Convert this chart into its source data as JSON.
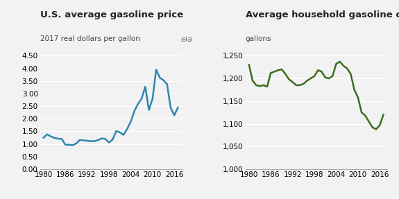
{
  "price_years": [
    1980,
    1981,
    1982,
    1983,
    1984,
    1985,
    1986,
    1987,
    1988,
    1989,
    1990,
    1991,
    1992,
    1993,
    1994,
    1995,
    1996,
    1997,
    1998,
    1999,
    2000,
    2001,
    2002,
    2003,
    2004,
    2005,
    2006,
    2007,
    2008,
    2009,
    2010,
    2011,
    2012,
    2013,
    2014,
    2015,
    2016,
    2017
  ],
  "price_values": [
    1.25,
    1.38,
    1.3,
    1.24,
    1.21,
    1.2,
    0.97,
    0.97,
    0.95,
    1.02,
    1.16,
    1.14,
    1.13,
    1.11,
    1.11,
    1.15,
    1.22,
    1.2,
    1.06,
    1.17,
    1.51,
    1.46,
    1.36,
    1.59,
    1.88,
    2.3,
    2.59,
    2.8,
    3.27,
    2.35,
    2.79,
    3.95,
    3.63,
    3.53,
    3.37,
    2.43,
    2.14,
    2.45
  ],
  "consumption_years": [
    1980,
    1981,
    1982,
    1983,
    1984,
    1985,
    1986,
    1987,
    1988,
    1989,
    1990,
    1991,
    1992,
    1993,
    1994,
    1995,
    1996,
    1997,
    1998,
    1999,
    2000,
    2001,
    2002,
    2003,
    2004,
    2005,
    2006,
    2007,
    2008,
    2009,
    2010,
    2011,
    2012,
    2013,
    2014,
    2015,
    2016,
    2017
  ],
  "consumption_values": [
    1230,
    1195,
    1185,
    1183,
    1185,
    1182,
    1212,
    1215,
    1218,
    1220,
    1210,
    1198,
    1192,
    1185,
    1185,
    1188,
    1195,
    1200,
    1205,
    1218,
    1215,
    1202,
    1200,
    1205,
    1232,
    1237,
    1228,
    1222,
    1210,
    1175,
    1158,
    1125,
    1118,
    1105,
    1092,
    1088,
    1097,
    1120
  ],
  "price_color": "#2E86AB",
  "consumption_color": "#3d6b1e",
  "price_title": "U.S. average gasoline price",
  "price_subtitle": "2017 real dollars per gallon",
  "consumption_title": "Average household gasoline consumption",
  "consumption_subtitle": "gallons",
  "price_ylim": [
    0.0,
    4.5
  ],
  "price_yticks": [
    0.0,
    0.5,
    1.0,
    1.5,
    2.0,
    2.5,
    3.0,
    3.5,
    4.0,
    4.5
  ],
  "consumption_ylim": [
    1000,
    1250
  ],
  "consumption_yticks": [
    1000,
    1050,
    1100,
    1150,
    1200,
    1250
  ],
  "xlim": [
    1979,
    2018
  ],
  "xticks": [
    1980,
    1986,
    1992,
    1998,
    2004,
    2010,
    2016
  ],
  "bg_color": "#f2f2f2",
  "title_fontsize": 9.5,
  "subtitle_fontsize": 7.5,
  "tick_fontsize": 7.5,
  "line_width": 1.8
}
